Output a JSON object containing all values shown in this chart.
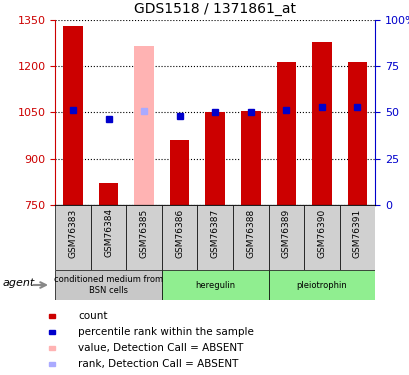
{
  "title": "GDS1518 / 1371861_at",
  "samples": [
    "GSM76383",
    "GSM76384",
    "GSM76385",
    "GSM76386",
    "GSM76387",
    "GSM76388",
    "GSM76389",
    "GSM76390",
    "GSM76391"
  ],
  "count_values": [
    1330,
    820,
    null,
    960,
    1050,
    1055,
    1215,
    1280,
    1215
  ],
  "count_absent": [
    null,
    null,
    1265,
    null,
    null,
    null,
    null,
    null,
    null
  ],
  "rank_values": [
    1058,
    1028,
    null,
    1040,
    1052,
    1052,
    1058,
    1068,
    1068
  ],
  "rank_absent": [
    null,
    null,
    1055,
    null,
    null,
    null,
    null,
    null,
    null
  ],
  "ylim_left": [
    750,
    1350
  ],
  "ylim_right": [
    0,
    100
  ],
  "yticks_left": [
    750,
    900,
    1050,
    1200,
    1350
  ],
  "yticks_right": [
    0,
    25,
    50,
    75,
    100
  ],
  "ytick_labels_right": [
    "0",
    "25",
    "50",
    "75",
    "100%"
  ],
  "bar_color_present": "#cc0000",
  "bar_color_absent": "#ffb3b3",
  "rank_color_present": "#0000cc",
  "rank_color_absent": "#aaaaff",
  "bar_width": 0.55,
  "groups": [
    {
      "label": "conditioned medium from\nBSN cells",
      "start": 0,
      "end": 3,
      "color": "#c8c8c8"
    },
    {
      "label": "heregulin",
      "start": 3,
      "end": 6,
      "color": "#90ee90"
    },
    {
      "label": "pleiotrophin",
      "start": 6,
      "end": 9,
      "color": "#90ee90"
    }
  ],
  "legend_items": [
    {
      "label": "count",
      "color": "#cc0000"
    },
    {
      "label": "percentile rank within the sample",
      "color": "#0000cc"
    },
    {
      "label": "value, Detection Call = ABSENT",
      "color": "#ffb3b3"
    },
    {
      "label": "rank, Detection Call = ABSENT",
      "color": "#aaaaff"
    }
  ],
  "agent_label": "agent",
  "left_axis_color": "#cc0000",
  "right_axis_color": "#0000cc",
  "sample_box_color": "#d0d0d0",
  "fig_width": 4.1,
  "fig_height": 3.75,
  "dpi": 100
}
